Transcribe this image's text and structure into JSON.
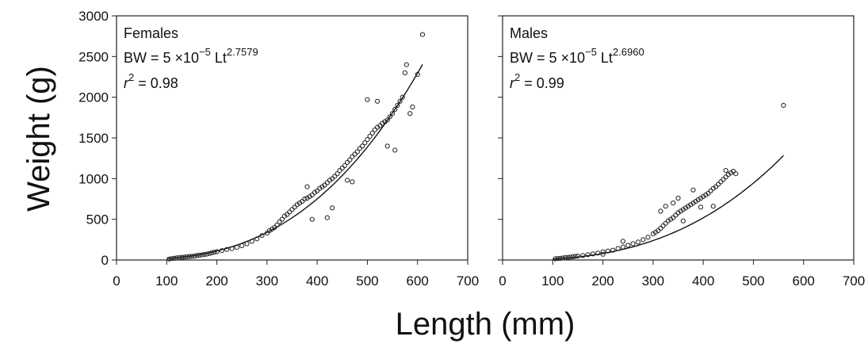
{
  "figure": {
    "ylabel": "Weight (g)",
    "xlabel": "Length (mm)"
  },
  "chart_data": [
    {
      "type": "scatter",
      "panel_label": "Females",
      "equation": {
        "prefix": "BW = 5 ×10",
        "coef_exp": "−5",
        "mid": " Lt",
        "exp": "2.7579"
      },
      "r2": {
        "symbol": "r",
        "power": "2",
        "value": " = 0.98"
      },
      "xlim": [
        0,
        700
      ],
      "ylim": [
        0,
        3000
      ],
      "xticks": [
        0,
        100,
        200,
        300,
        400,
        500,
        600,
        700
      ],
      "xtick_labels": [
        "0",
        "100",
        "200",
        "300",
        "400",
        "500",
        "600",
        "700"
      ],
      "yticks": [
        0,
        500,
        1000,
        1500,
        2000,
        2500,
        3000
      ],
      "ytick_labels": [
        "0",
        "500",
        "1000",
        "1500",
        "2000",
        "2500",
        "3000"
      ],
      "fit": {
        "a": 5e-05,
        "b": 2.7579,
        "x_range": [
          100,
          610
        ]
      },
      "points": [
        [
          105,
          12
        ],
        [
          110,
          18
        ],
        [
          115,
          20
        ],
        [
          120,
          25
        ],
        [
          125,
          28
        ],
        [
          130,
          32
        ],
        [
          135,
          35
        ],
        [
          140,
          38
        ],
        [
          145,
          42
        ],
        [
          150,
          45
        ],
        [
          155,
          48
        ],
        [
          160,
          55
        ],
        [
          165,
          58
        ],
        [
          170,
          62
        ],
        [
          175,
          68
        ],
        [
          180,
          72
        ],
        [
          185,
          80
        ],
        [
          190,
          88
        ],
        [
          195,
          95
        ],
        [
          200,
          102
        ],
        [
          210,
          115
        ],
        [
          220,
          130
        ],
        [
          230,
          140
        ],
        [
          240,
          155
        ],
        [
          250,
          175
        ],
        [
          260,
          200
        ],
        [
          270,
          230
        ],
        [
          280,
          260
        ],
        [
          290,
          300
        ],
        [
          300,
          330
        ],
        [
          305,
          360
        ],
        [
          310,
          380
        ],
        [
          315,
          400
        ],
        [
          320,
          430
        ],
        [
          325,
          470
        ],
        [
          330,
          500
        ],
        [
          335,
          540
        ],
        [
          340,
          560
        ],
        [
          345,
          590
        ],
        [
          350,
          620
        ],
        [
          355,
          650
        ],
        [
          360,
          680
        ],
        [
          365,
          700
        ],
        [
          370,
          720
        ],
        [
          375,
          750
        ],
        [
          380,
          760
        ],
        [
          385,
          780
        ],
        [
          390,
          800
        ],
        [
          395,
          830
        ],
        [
          400,
          850
        ],
        [
          405,
          880
        ],
        [
          410,
          900
        ],
        [
          415,
          920
        ],
        [
          420,
          950
        ],
        [
          425,
          980
        ],
        [
          430,
          1000
        ],
        [
          435,
          1030
        ],
        [
          440,
          1060
        ],
        [
          445,
          1100
        ],
        [
          450,
          1130
        ],
        [
          455,
          1160
        ],
        [
          460,
          1200
        ],
        [
          465,
          1230
        ],
        [
          470,
          1270
        ],
        [
          475,
          1300
        ],
        [
          480,
          1330
        ],
        [
          485,
          1370
        ],
        [
          490,
          1400
        ],
        [
          495,
          1440
        ],
        [
          500,
          1480
        ],
        [
          505,
          1520
        ],
        [
          510,
          1560
        ],
        [
          515,
          1600
        ],
        [
          520,
          1630
        ],
        [
          525,
          1650
        ],
        [
          530,
          1680
        ],
        [
          535,
          1700
        ],
        [
          540,
          1720
        ],
        [
          545,
          1760
        ],
        [
          550,
          1800
        ],
        [
          555,
          1850
        ],
        [
          560,
          1900
        ],
        [
          565,
          1950
        ],
        [
          570,
          2000
        ],
        [
          590,
          1880
        ],
        [
          600,
          2280
        ],
        [
          575,
          2300
        ],
        [
          578,
          2400
        ],
        [
          610,
          2770
        ],
        [
          420,
          520
        ],
        [
          430,
          640
        ],
        [
          390,
          500
        ],
        [
          460,
          980
        ],
        [
          470,
          960
        ],
        [
          500,
          1970
        ],
        [
          520,
          1950
        ],
        [
          540,
          1400
        ],
        [
          555,
          1350
        ],
        [
          585,
          1800
        ],
        [
          380,
          900
        ]
      ]
    },
    {
      "type": "scatter",
      "panel_label": "Males",
      "equation": {
        "prefix": "BW = 5 ×10",
        "coef_exp": "−5",
        "mid": " Lt",
        "exp": "2.6960"
      },
      "r2": {
        "symbol": "r",
        "power": "2",
        "value": " = 0.99"
      },
      "xlim": [
        0,
        700
      ],
      "ylim": [
        0,
        3000
      ],
      "xticks": [
        0,
        100,
        200,
        300,
        400,
        500,
        600,
        700
      ],
      "xtick_labels": [
        "0",
        "100",
        "200",
        "300",
        "400",
        "500",
        "600",
        "700"
      ],
      "yticks": [
        0,
        500,
        1000,
        1500,
        2000,
        2500,
        3000
      ],
      "fit": {
        "a": 5e-05,
        "b": 2.696,
        "x_range": [
          100,
          560
        ]
      },
      "points": [
        [
          105,
          15
        ],
        [
          110,
          18
        ],
        [
          115,
          20
        ],
        [
          120,
          24
        ],
        [
          125,
          28
        ],
        [
          130,
          32
        ],
        [
          135,
          35
        ],
        [
          140,
          40
        ],
        [
          145,
          45
        ],
        [
          150,
          48
        ],
        [
          160,
          55
        ],
        [
          170,
          65
        ],
        [
          180,
          75
        ],
        [
          190,
          85
        ],
        [
          200,
          100
        ],
        [
          210,
          110
        ],
        [
          220,
          120
        ],
        [
          230,
          140
        ],
        [
          240,
          160
        ],
        [
          250,
          180
        ],
        [
          260,
          200
        ],
        [
          270,
          220
        ],
        [
          280,
          250
        ],
        [
          290,
          280
        ],
        [
          300,
          320
        ],
        [
          305,
          340
        ],
        [
          310,
          360
        ],
        [
          315,
          390
        ],
        [
          320,
          420
        ],
        [
          325,
          450
        ],
        [
          330,
          480
        ],
        [
          335,
          500
        ],
        [
          340,
          520
        ],
        [
          345,
          550
        ],
        [
          350,
          580
        ],
        [
          355,
          600
        ],
        [
          360,
          620
        ],
        [
          365,
          640
        ],
        [
          370,
          660
        ],
        [
          375,
          680
        ],
        [
          380,
          700
        ],
        [
          385,
          720
        ],
        [
          390,
          740
        ],
        [
          395,
          760
        ],
        [
          400,
          780
        ],
        [
          405,
          800
        ],
        [
          410,
          820
        ],
        [
          415,
          850
        ],
        [
          420,
          880
        ],
        [
          425,
          900
        ],
        [
          430,
          930
        ],
        [
          435,
          960
        ],
        [
          440,
          990
        ],
        [
          445,
          1020
        ],
        [
          450,
          1050
        ],
        [
          455,
          1070
        ],
        [
          460,
          1090
        ],
        [
          315,
          600
        ],
        [
          325,
          660
        ],
        [
          340,
          700
        ],
        [
          350,
          760
        ],
        [
          360,
          480
        ],
        [
          380,
          860
        ],
        [
          395,
          650
        ],
        [
          420,
          660
        ],
        [
          445,
          1100
        ],
        [
          465,
          1060
        ],
        [
          560,
          1900
        ],
        [
          200,
          70
        ],
        [
          240,
          230
        ]
      ]
    }
  ]
}
